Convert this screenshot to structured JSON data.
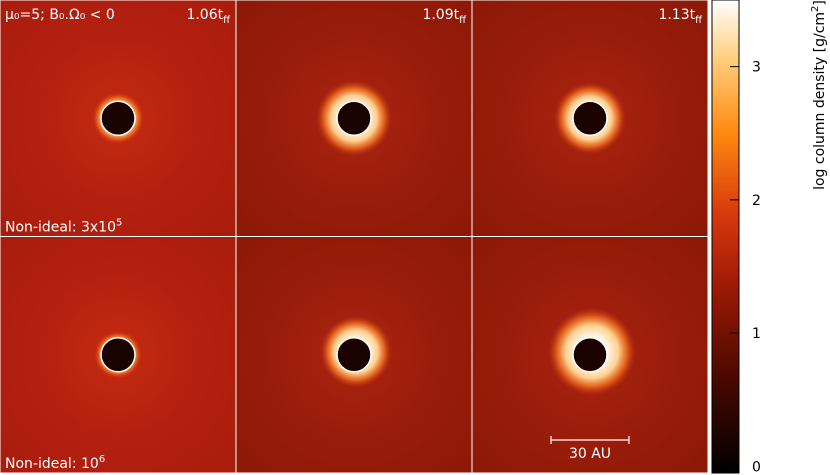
{
  "chart_data": {
    "type": "image",
    "panel_title": "μ₀=5; B₀.Ω₀ < 0",
    "times": [
      {
        "text": "1.06t",
        "sub": "ff"
      },
      {
        "text": "1.09t",
        "sub": "ff"
      },
      {
        "text": "1.13t",
        "sub": "ff"
      }
    ],
    "rows": [
      {
        "text": "Non-ideal: 3x10",
        "sup": "5"
      },
      {
        "text": "Non-ideal: 10",
        "sup": "6"
      }
    ],
    "scale_bar": "30 AU",
    "colorbar": {
      "label": "log column density [g/cm",
      "label_sup": "2",
      "label_end": "]",
      "clim": [
        -0.05,
        3.5
      ],
      "ticks": [
        0,
        1,
        2,
        3
      ]
    }
  }
}
